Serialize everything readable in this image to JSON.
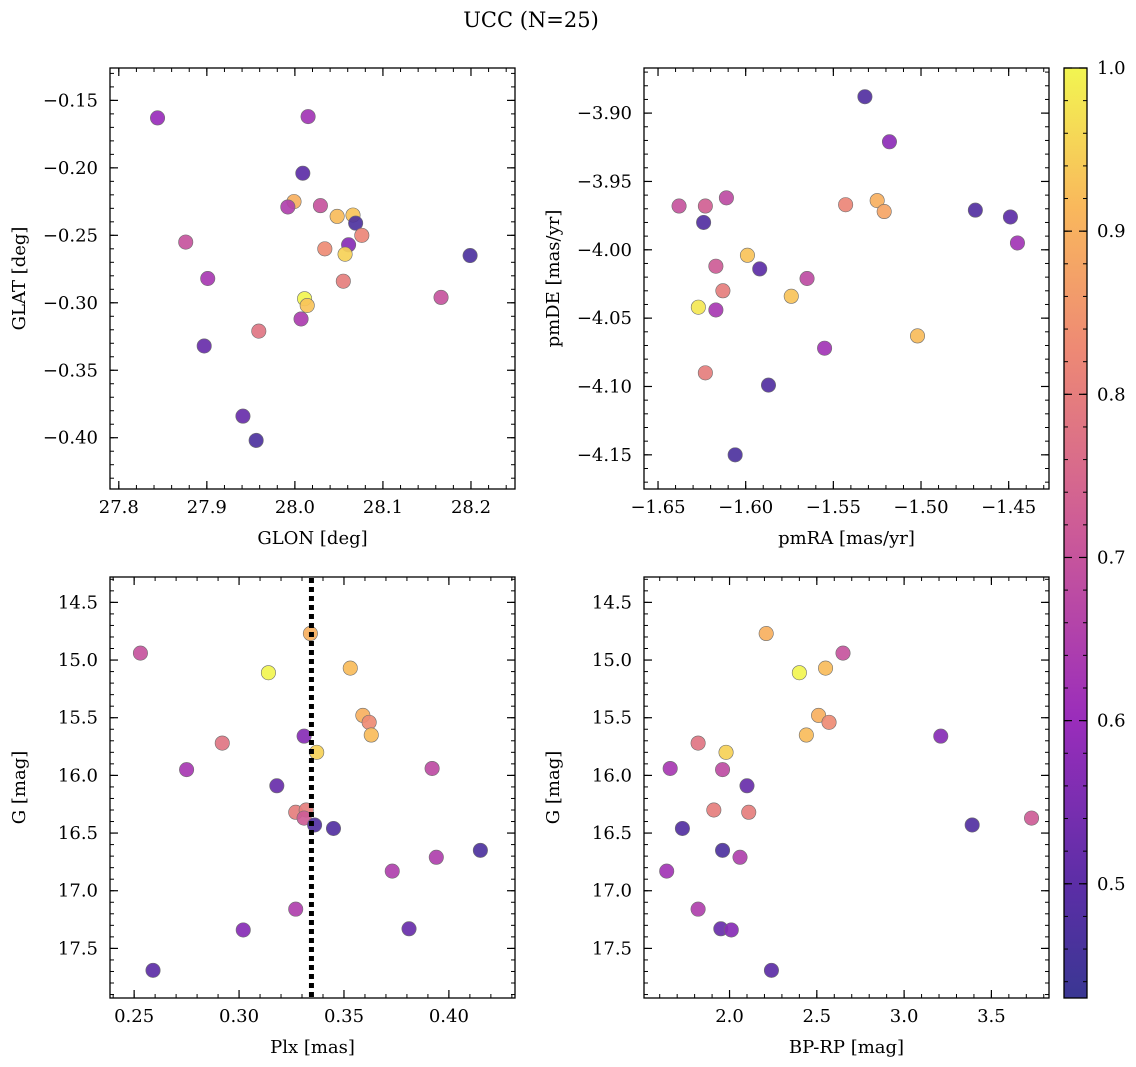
{
  "title": "UCC (N=25)",
  "colorbar": {
    "colormap": "plasma",
    "vmin": 0.43,
    "vmax": 1.0,
    "ticks": [
      0.5,
      0.6,
      0.7,
      0.8,
      0.9,
      1.0
    ],
    "tick_labels": [
      "0.5",
      "0.6",
      "0.7",
      "0.8",
      "0.9",
      "1.0"
    ]
  },
  "colors": {
    "marker_edge": "#6e6e6e",
    "vline": "#000000"
  },
  "chart_data": [
    {
      "type": "scatter",
      "xlabel": "GLON [deg]",
      "ylabel": "GLAT [deg]",
      "xlim": [
        27.79,
        28.25
      ],
      "ylim": [
        -0.438,
        -0.126
      ],
      "y_inverted": false,
      "xticks": [
        27.8,
        27.9,
        28.0,
        28.1,
        28.2
      ],
      "xtick_labels": [
        "27.8",
        "27.9",
        "28.0",
        "28.1",
        "28.2"
      ],
      "yticks": [
        -0.4,
        -0.35,
        -0.3,
        -0.25,
        -0.2,
        -0.15
      ],
      "ytick_labels": [
        "−0.40",
        "−0.35",
        "−0.30",
        "−0.25",
        "−0.20",
        "−0.15"
      ],
      "points": [
        {
          "x": 27.844,
          "y": -0.163,
          "c": 0.6
        },
        {
          "x": 28.015,
          "y": -0.162,
          "c": 0.62
        },
        {
          "x": 28.009,
          "y": -0.204,
          "c": 0.5
        },
        {
          "x": 27.999,
          "y": -0.225,
          "c": 0.9
        },
        {
          "x": 27.992,
          "y": -0.229,
          "c": 0.65
        },
        {
          "x": 28.029,
          "y": -0.228,
          "c": 0.7
        },
        {
          "x": 28.048,
          "y": -0.236,
          "c": 0.92
        },
        {
          "x": 28.066,
          "y": -0.235,
          "c": 0.93
        },
        {
          "x": 28.069,
          "y": -0.241,
          "c": 0.47
        },
        {
          "x": 27.876,
          "y": -0.255,
          "c": 0.7
        },
        {
          "x": 28.061,
          "y": -0.257,
          "c": 0.57
        },
        {
          "x": 28.034,
          "y": -0.26,
          "c": 0.83
        },
        {
          "x": 28.076,
          "y": -0.25,
          "c": 0.82
        },
        {
          "x": 28.057,
          "y": -0.264,
          "c": 0.95
        },
        {
          "x": 28.199,
          "y": -0.265,
          "c": 0.47
        },
        {
          "x": 27.901,
          "y": -0.282,
          "c": 0.63
        },
        {
          "x": 28.055,
          "y": -0.284,
          "c": 0.8
        },
        {
          "x": 28.011,
          "y": -0.297,
          "c": 1.0
        },
        {
          "x": 28.014,
          "y": -0.302,
          "c": 0.93
        },
        {
          "x": 28.166,
          "y": -0.296,
          "c": 0.7
        },
        {
          "x": 28.007,
          "y": -0.312,
          "c": 0.64
        },
        {
          "x": 27.959,
          "y": -0.321,
          "c": 0.78
        },
        {
          "x": 27.897,
          "y": -0.332,
          "c": 0.52
        },
        {
          "x": 27.941,
          "y": -0.384,
          "c": 0.52
        },
        {
          "x": 27.956,
          "y": -0.402,
          "c": 0.47
        }
      ]
    },
    {
      "type": "scatter",
      "xlabel": "pmRA [mas/yr]",
      "ylabel": "pmDE [mas/yr]",
      "xlim": [
        -1.658,
        -1.427
      ],
      "ylim": [
        -4.175,
        -3.867
      ],
      "y_inverted": false,
      "xticks": [
        -1.65,
        -1.6,
        -1.55,
        -1.5,
        -1.45
      ],
      "xtick_labels": [
        "−1.65",
        "−1.60",
        "−1.55",
        "−1.50",
        "−1.45"
      ],
      "yticks": [
        -4.15,
        -4.1,
        -4.05,
        -4.0,
        -3.95,
        -3.9
      ],
      "ytick_labels": [
        "−4.15",
        "−4.10",
        "−4.05",
        "−4.00",
        "−3.95",
        "−3.90"
      ],
      "points": [
        {
          "x": -1.532,
          "y": -3.888,
          "c": 0.48
        },
        {
          "x": -1.518,
          "y": -3.921,
          "c": 0.58
        },
        {
          "x": -1.638,
          "y": -3.968,
          "c": 0.7
        },
        {
          "x": -1.623,
          "y": -3.968,
          "c": 0.73
        },
        {
          "x": -1.611,
          "y": -3.962,
          "c": 0.68
        },
        {
          "x": -1.543,
          "y": -3.967,
          "c": 0.82
        },
        {
          "x": -1.525,
          "y": -3.964,
          "c": 0.9
        },
        {
          "x": -1.521,
          "y": -3.972,
          "c": 0.88
        },
        {
          "x": -1.469,
          "y": -3.971,
          "c": 0.48
        },
        {
          "x": -1.449,
          "y": -3.976,
          "c": 0.5
        },
        {
          "x": -1.624,
          "y": -3.98,
          "c": 0.48
        },
        {
          "x": -1.445,
          "y": -3.995,
          "c": 0.62
        },
        {
          "x": -1.599,
          "y": -4.004,
          "c": 0.93
        },
        {
          "x": -1.617,
          "y": -4.012,
          "c": 0.72
        },
        {
          "x": -1.592,
          "y": -4.014,
          "c": 0.5
        },
        {
          "x": -1.565,
          "y": -4.021,
          "c": 0.68
        },
        {
          "x": -1.613,
          "y": -4.03,
          "c": 0.8
        },
        {
          "x": -1.574,
          "y": -4.034,
          "c": 0.93
        },
        {
          "x": -1.627,
          "y": -4.042,
          "c": 0.98
        },
        {
          "x": -1.617,
          "y": -4.044,
          "c": 0.63
        },
        {
          "x": -1.502,
          "y": -4.063,
          "c": 0.92
        },
        {
          "x": -1.555,
          "y": -4.072,
          "c": 0.62
        },
        {
          "x": -1.623,
          "y": -4.09,
          "c": 0.8
        },
        {
          "x": -1.587,
          "y": -4.099,
          "c": 0.48
        },
        {
          "x": -1.606,
          "y": -4.15,
          "c": 0.47
        }
      ]
    },
    {
      "type": "scatter",
      "xlabel": "Plx [mas]",
      "ylabel": "G [mag]",
      "xlim": [
        0.2385,
        0.4315
      ],
      "ylim": [
        17.93,
        14.28
      ],
      "y_inverted": true,
      "xticks": [
        0.25,
        0.3,
        0.35,
        0.4
      ],
      "xtick_labels": [
        "0.25",
        "0.30",
        "0.35",
        "0.40"
      ],
      "yticks": [
        14.5,
        15.0,
        15.5,
        16.0,
        16.5,
        17.0,
        17.5
      ],
      "ytick_labels": [
        "14.5",
        "15.0",
        "15.5",
        "16.0",
        "16.5",
        "17.0",
        "17.5"
      ],
      "vline": {
        "x": 0.3345,
        "style": "dotted"
      },
      "points": [
        {
          "x": 0.253,
          "y": 14.94,
          "c": 0.7
        },
        {
          "x": 0.334,
          "y": 14.77,
          "c": 0.9
        },
        {
          "x": 0.314,
          "y": 15.11,
          "c": 1.0
        },
        {
          "x": 0.353,
          "y": 15.07,
          "c": 0.92
        },
        {
          "x": 0.359,
          "y": 15.48,
          "c": 0.9
        },
        {
          "x": 0.362,
          "y": 15.54,
          "c": 0.83
        },
        {
          "x": 0.363,
          "y": 15.65,
          "c": 0.92
        },
        {
          "x": 0.292,
          "y": 15.72,
          "c": 0.78
        },
        {
          "x": 0.331,
          "y": 15.66,
          "c": 0.57
        },
        {
          "x": 0.337,
          "y": 15.8,
          "c": 0.95
        },
        {
          "x": 0.275,
          "y": 15.95,
          "c": 0.63
        },
        {
          "x": 0.392,
          "y": 15.94,
          "c": 0.68
        },
        {
          "x": 0.318,
          "y": 16.09,
          "c": 0.52
        },
        {
          "x": 0.327,
          "y": 16.32,
          "c": 0.8
        },
        {
          "x": 0.332,
          "y": 16.3,
          "c": 0.8
        },
        {
          "x": 0.331,
          "y": 16.37,
          "c": 0.72
        },
        {
          "x": 0.336,
          "y": 16.43,
          "c": 0.48
        },
        {
          "x": 0.345,
          "y": 16.46,
          "c": 0.48
        },
        {
          "x": 0.415,
          "y": 16.65,
          "c": 0.47
        },
        {
          "x": 0.394,
          "y": 16.71,
          "c": 0.65
        },
        {
          "x": 0.373,
          "y": 16.83,
          "c": 0.65
        },
        {
          "x": 0.327,
          "y": 17.16,
          "c": 0.65
        },
        {
          "x": 0.302,
          "y": 17.34,
          "c": 0.57
        },
        {
          "x": 0.381,
          "y": 17.33,
          "c": 0.52
        },
        {
          "x": 0.259,
          "y": 17.69,
          "c": 0.5
        }
      ]
    },
    {
      "type": "scatter",
      "xlabel": "BP-RP [mag]",
      "ylabel": "G [mag]",
      "xlim": [
        1.51,
        3.83
      ],
      "ylim": [
        17.93,
        14.28
      ],
      "y_inverted": true,
      "xticks": [
        2.0,
        2.5,
        3.0,
        3.5
      ],
      "xtick_labels": [
        "2.0",
        "2.5",
        "3.0",
        "3.5"
      ],
      "yticks": [
        14.5,
        15.0,
        15.5,
        16.0,
        16.5,
        17.0,
        17.5
      ],
      "ytick_labels": [
        "14.5",
        "15.0",
        "15.5",
        "16.0",
        "16.5",
        "17.0",
        "17.5"
      ],
      "points": [
        {
          "x": 2.21,
          "y": 14.77,
          "c": 0.9
        },
        {
          "x": 2.65,
          "y": 14.94,
          "c": 0.7
        },
        {
          "x": 2.4,
          "y": 15.11,
          "c": 1.0
        },
        {
          "x": 2.55,
          "y": 15.07,
          "c": 0.92
        },
        {
          "x": 2.51,
          "y": 15.48,
          "c": 0.9
        },
        {
          "x": 2.57,
          "y": 15.54,
          "c": 0.83
        },
        {
          "x": 2.44,
          "y": 15.65,
          "c": 0.92
        },
        {
          "x": 1.82,
          "y": 15.72,
          "c": 0.78
        },
        {
          "x": 1.98,
          "y": 15.8,
          "c": 0.95
        },
        {
          "x": 3.21,
          "y": 15.66,
          "c": 0.57
        },
        {
          "x": 1.66,
          "y": 15.94,
          "c": 0.63
        },
        {
          "x": 1.96,
          "y": 15.95,
          "c": 0.68
        },
        {
          "x": 2.1,
          "y": 16.09,
          "c": 0.52
        },
        {
          "x": 1.91,
          "y": 16.3,
          "c": 0.8
        },
        {
          "x": 2.11,
          "y": 16.32,
          "c": 0.8
        },
        {
          "x": 1.73,
          "y": 16.46,
          "c": 0.48
        },
        {
          "x": 3.39,
          "y": 16.43,
          "c": 0.48
        },
        {
          "x": 3.73,
          "y": 16.37,
          "c": 0.72
        },
        {
          "x": 1.96,
          "y": 16.65,
          "c": 0.47
        },
        {
          "x": 2.06,
          "y": 16.71,
          "c": 0.65
        },
        {
          "x": 1.64,
          "y": 16.83,
          "c": 0.62
        },
        {
          "x": 1.82,
          "y": 17.16,
          "c": 0.65
        },
        {
          "x": 1.95,
          "y": 17.33,
          "c": 0.52
        },
        {
          "x": 2.01,
          "y": 17.34,
          "c": 0.57
        },
        {
          "x": 2.24,
          "y": 17.69,
          "c": 0.5
        }
      ]
    }
  ]
}
